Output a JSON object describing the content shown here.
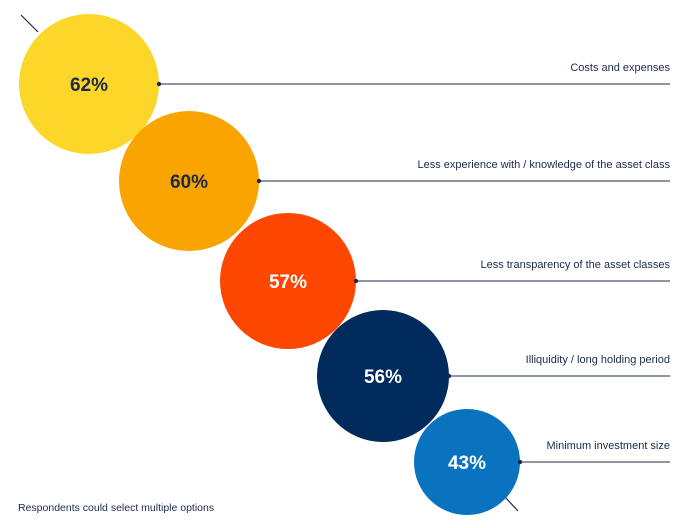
{
  "chart_data": {
    "type": "bubble",
    "unit": "%",
    "categories": [
      "Costs and expenses",
      "Less experience with / knowledge of the asset class",
      "Less transparency of the asset classes",
      "Illiquidity / long holding period",
      "Minimum investment size"
    ],
    "values": [
      62,
      60,
      57,
      56,
      43
    ],
    "value_labels": [
      "62%",
      "60%",
      "57%",
      "56%",
      "43%"
    ],
    "colors": [
      "#FDD62A",
      "#F9A400",
      "#FD4600",
      "#002B5C",
      "#0A73C0"
    ],
    "value_text_colors": [
      "#1b2a4a",
      "#1b2a4a",
      "#ffffff",
      "#ffffff",
      "#ffffff"
    ],
    "leader_line_color": "#1b2a4a"
  },
  "footnote": "Respondents could select multiple options"
}
